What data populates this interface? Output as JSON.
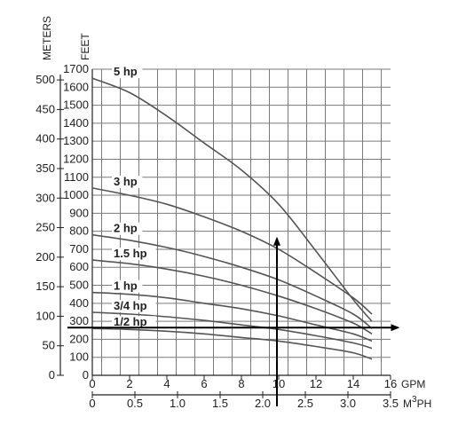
{
  "chart_data": {
    "type": "line",
    "axis_titles": {
      "meters": "METERS",
      "feet": "FEET",
      "gpm": "GPM",
      "m3ph_base": "M",
      "m3ph_sup": "3",
      "m3ph_tail": "PH"
    },
    "x_gpm": {
      "min": 0,
      "max": 16,
      "ticks": [
        "0",
        "2",
        "4",
        "6",
        "8",
        "10",
        "12",
        "14",
        "16"
      ]
    },
    "x_m3ph": {
      "min": 0,
      "max": 3.5,
      "ticks": [
        "0",
        "0.5",
        "1.0",
        "1.5",
        "2.0",
        "2.5",
        "3.0",
        "3.5"
      ]
    },
    "y_feet": {
      "min": 0,
      "max": 1700,
      "step": 100,
      "ticks": [
        "0",
        "100",
        "200",
        "300",
        "400",
        "500",
        "600",
        "700",
        "800",
        "900",
        "1000",
        "1100",
        "1200",
        "1300",
        "1400",
        "1500",
        "1600",
        "1700"
      ]
    },
    "y_meters": {
      "min": 0,
      "max": 500,
      "ticks": [
        "0",
        "50",
        "100",
        "150",
        "200",
        "250",
        "300",
        "350",
        "400",
        "450",
        "500"
      ]
    },
    "grid": true,
    "series": [
      {
        "name": "5 hp",
        "x": [
          0,
          2,
          4,
          6,
          8,
          10,
          12,
          14,
          15
        ],
        "y": [
          1650,
          1570,
          1440,
          1290,
          1140,
          950,
          690,
          420,
          300
        ]
      },
      {
        "name": "3 hp",
        "x": [
          0,
          2,
          4,
          6,
          8,
          10,
          12,
          14,
          15
        ],
        "y": [
          1040,
          1000,
          950,
          880,
          800,
          700,
          570,
          430,
          340
        ]
      },
      {
        "name": "2 hp",
        "x": [
          0,
          2,
          4,
          6,
          8,
          10,
          12,
          14,
          15
        ],
        "y": [
          780,
          750,
          710,
          660,
          600,
          530,
          440,
          340,
          260
        ]
      },
      {
        "name": "1.5 hp",
        "x": [
          0,
          2,
          4,
          6,
          8,
          10,
          12,
          14,
          15
        ],
        "y": [
          640,
          620,
          590,
          550,
          500,
          440,
          370,
          290,
          230
        ]
      },
      {
        "name": "1 hp",
        "x": [
          0,
          2,
          4,
          6,
          8,
          10,
          12,
          14,
          15
        ],
        "y": [
          460,
          450,
          430,
          400,
          370,
          330,
          280,
          230,
          190
        ]
      },
      {
        "name": "3/4 hp",
        "x": [
          0,
          2,
          4,
          6,
          8,
          10,
          12,
          14,
          15
        ],
        "y": [
          350,
          340,
          325,
          305,
          280,
          255,
          220,
          180,
          150
        ]
      },
      {
        "name": "1/2 hp",
        "x": [
          0,
          2,
          4,
          6,
          8,
          10,
          12,
          14,
          15
        ],
        "y": [
          260,
          255,
          245,
          230,
          210,
          190,
          160,
          125,
          90
        ]
      }
    ],
    "annotations": {
      "operating_point": {
        "x_gpm": 10,
        "head_ft": 265,
        "arrow_up_to_ft": 760,
        "arrow_right_to_gpm": 16.4
      }
    }
  }
}
